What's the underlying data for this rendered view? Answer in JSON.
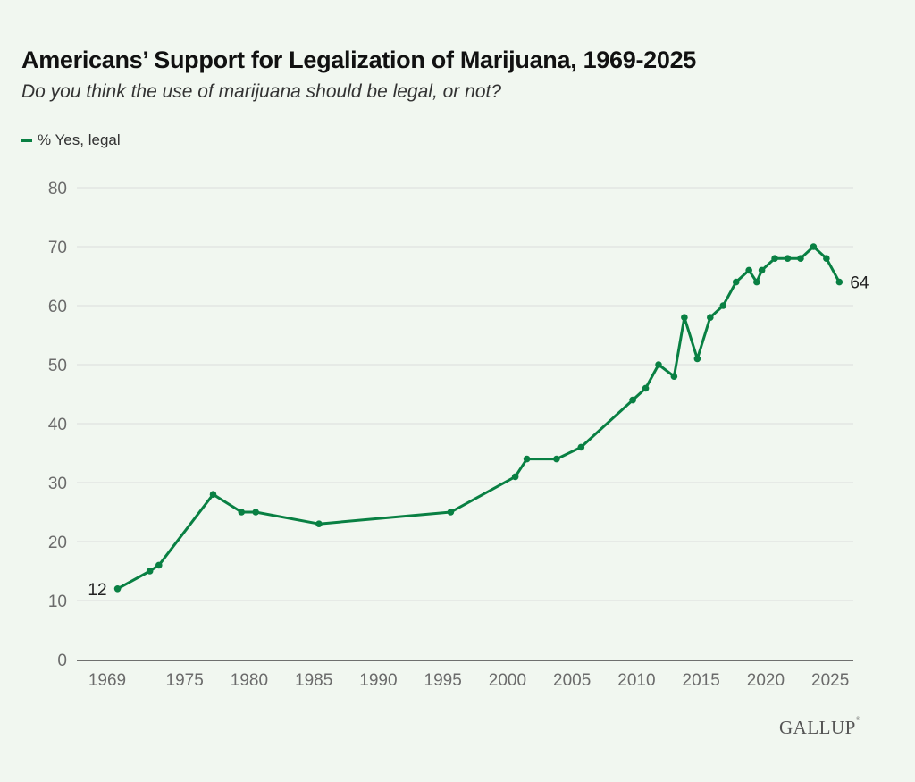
{
  "colors": {
    "line": "#098043",
    "grid": "#dcdedb",
    "axis": "#444444",
    "tick_text": "#6b6b6b",
    "label_text": "#222222",
    "background": "#f1f7f0"
  },
  "brand": {
    "logo_text": "GALLUP",
    "logo_mark": "®"
  },
  "chart_data": {
    "type": "line",
    "title": "Americans’ Support for Legalization of Marijuana, 1969-2025",
    "subtitle": "Do you think the use of marijuana should be legal, or not?",
    "xlabel": "",
    "ylabel": "",
    "ylim": [
      0,
      80
    ],
    "yticks": [
      0,
      10,
      20,
      30,
      40,
      50,
      60,
      70,
      80
    ],
    "xlim": [
      1968.7,
      2026.8
    ],
    "xticks": [
      1969,
      1975,
      1980,
      1985,
      1990,
      1995,
      2000,
      2005,
      2010,
      2015,
      2020,
      2025
    ],
    "grid": true,
    "legend": {
      "placement": "top-left",
      "entries": [
        "% Yes, legal"
      ]
    },
    "series": [
      {
        "name": "% Yes, legal",
        "x": [
          1969.8,
          1972.3,
          1973.0,
          1977.2,
          1979.4,
          1980.5,
          1985.4,
          1995.6,
          2000.6,
          2001.5,
          2003.8,
          2005.7,
          2009.7,
          2010.7,
          2011.7,
          2012.9,
          2013.7,
          2014.7,
          2015.7,
          2016.7,
          2017.7,
          2018.7,
          2019.3,
          2019.7,
          2020.7,
          2021.7,
          2022.7,
          2023.7,
          2024.7,
          2025.7
        ],
        "values": [
          12,
          15,
          16,
          28,
          25,
          25,
          23,
          25,
          31,
          34,
          34,
          36,
          44,
          46,
          50,
          48,
          58,
          51,
          58,
          60,
          64,
          66,
          64,
          66,
          68,
          68,
          68,
          70,
          68,
          64
        ]
      }
    ],
    "annotations": [
      {
        "point": "first",
        "text": "12"
      },
      {
        "point": "last",
        "text": "64"
      }
    ]
  }
}
